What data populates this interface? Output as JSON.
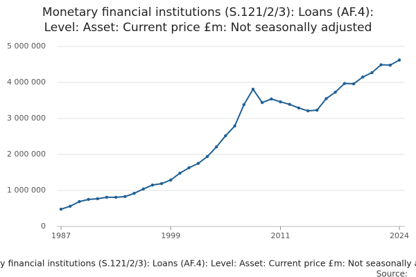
{
  "chart_data": {
    "type": "line",
    "title_lines": [
      "Monetary financial institutions (S.121/2/3): Loans (AF.4):",
      "Level: Asset: Current price £m: Not seasonally adjusted"
    ],
    "x": [
      1987,
      1988,
      1989,
      1990,
      1991,
      1992,
      1993,
      1994,
      1995,
      1996,
      1997,
      1998,
      1999,
      2000,
      2001,
      2002,
      2003,
      2004,
      2005,
      2006,
      2007,
      2008,
      2009,
      2010,
      2011,
      2012,
      2013,
      2014,
      2015,
      2016,
      2017,
      2018,
      2019,
      2020,
      2021,
      2022,
      2023,
      2024
    ],
    "series": [
      {
        "name": "Monetary financial institutions (S.121/2/3): Loans (AF.4): Level: Asset: Current price £m: Not seasonally adjusted",
        "color": "#206095",
        "values": [
          480000,
          560000,
          690000,
          750000,
          770000,
          810000,
          810000,
          830000,
          920000,
          1040000,
          1150000,
          1190000,
          1290000,
          1480000,
          1630000,
          1750000,
          1940000,
          2210000,
          2520000,
          2790000,
          3380000,
          3810000,
          3440000,
          3540000,
          3460000,
          3390000,
          3290000,
          3210000,
          3230000,
          3550000,
          3730000,
          3970000,
          3960000,
          4150000,
          4270000,
          4490000,
          4480000,
          4620000
        ]
      }
    ],
    "xlim": [
      1987,
      2024
    ],
    "xticks": [
      1987,
      1999,
      2011,
      2024
    ],
    "ylim": [
      0,
      5000000
    ],
    "yticks": [
      0,
      {
        "value": 1000000,
        "label": "1 000 000"
      },
      {
        "value": 2000000,
        "label": "2 000 000"
      },
      {
        "value": 3000000,
        "label": "3 000 000"
      },
      {
        "value": 4000000,
        "label": "4 000 000"
      },
      {
        "value": 5000000,
        "label": "5 000 000"
      }
    ],
    "grid": true,
    "source": "Source:"
  }
}
